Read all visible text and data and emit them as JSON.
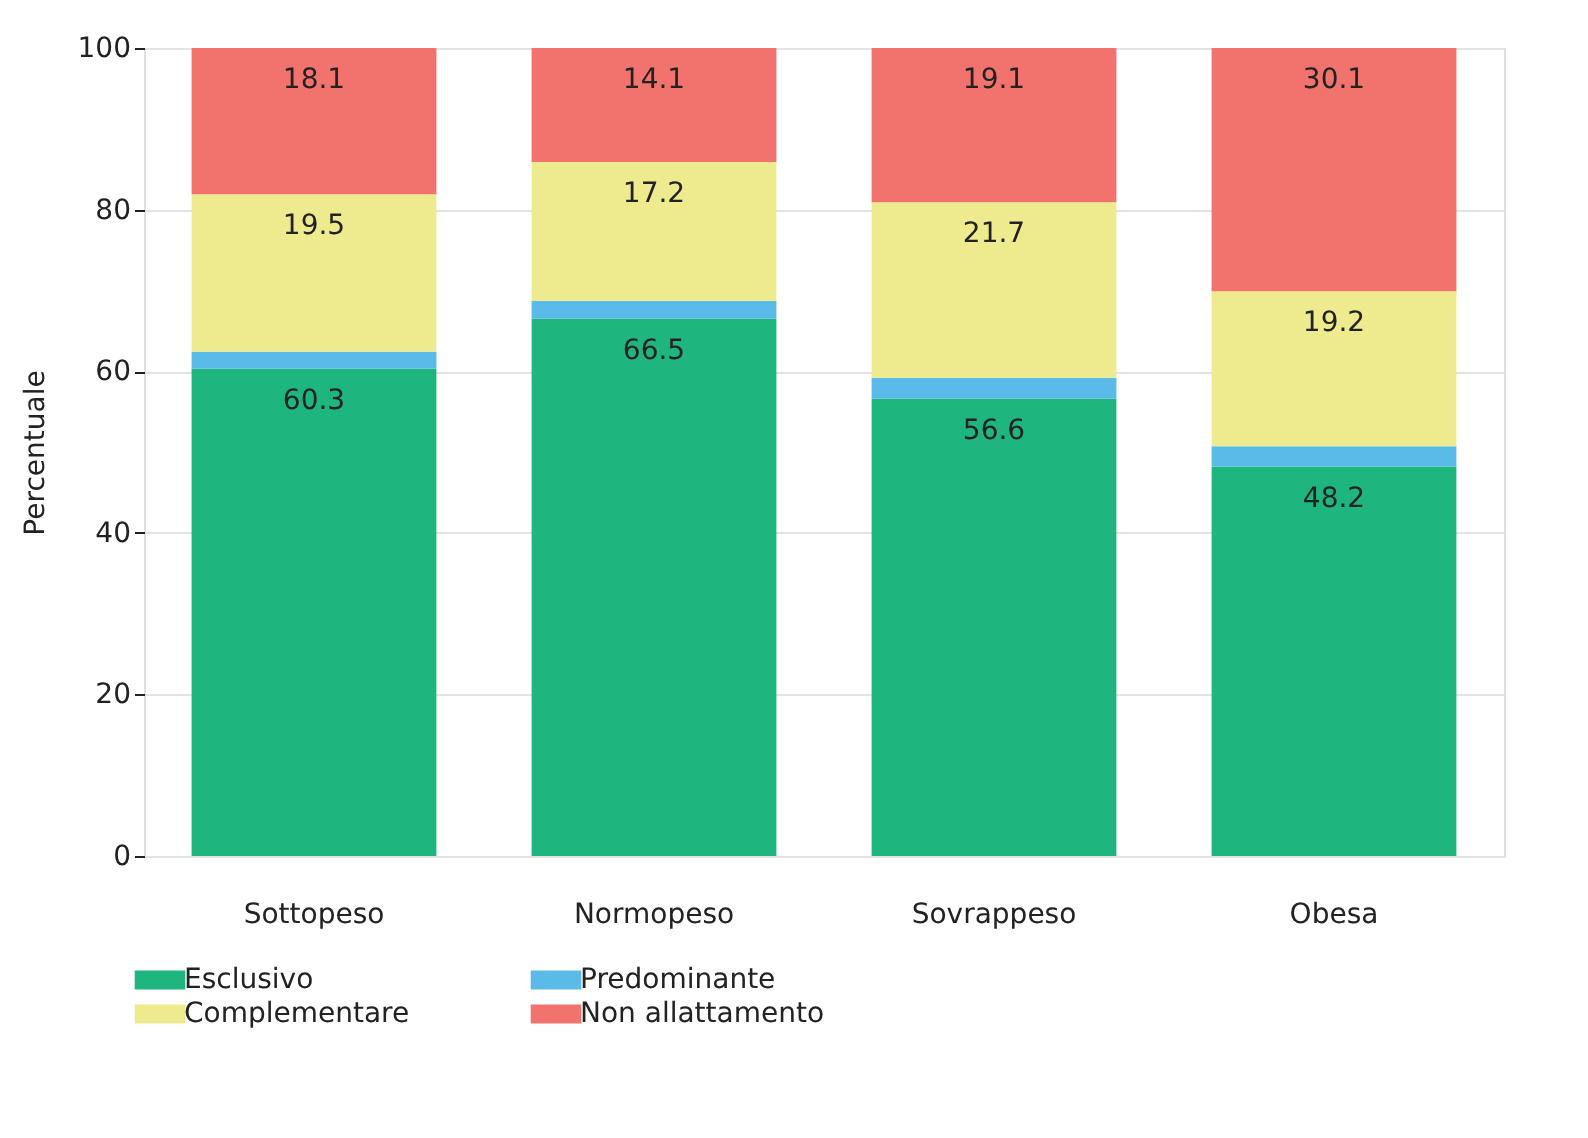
{
  "chart_data": {
    "type": "bar",
    "stacked": true,
    "ylabel": "Percentuale",
    "categories": [
      "Sottopeso",
      "Normopeso",
      "Sovrappeso",
      "Obesa"
    ],
    "series": [
      {
        "name": "Esclusivo",
        "color": "#1fb57e",
        "values": [
          60.3,
          66.5,
          56.6,
          48.2
        ],
        "value_labels": [
          "60.3",
          "66.5",
          "56.6",
          "48.2"
        ]
      },
      {
        "name": "Predominante",
        "color": "#5bbbe8",
        "values": [
          2.1,
          2.2,
          2.6,
          2.5
        ]
      },
      {
        "name": "Complementare",
        "color": "#eeeb8e",
        "values": [
          19.5,
          17.2,
          21.7,
          19.2
        ],
        "value_labels": [
          "19.5",
          "17.2",
          "21.7",
          "19.2"
        ]
      },
      {
        "name": "Non allattamento",
        "color": "#f2726d",
        "values": [
          18.1,
          14.1,
          19.1,
          30.1
        ],
        "value_labels": [
          "18.1",
          "14.1",
          "19.1",
          "30.1"
        ]
      }
    ],
    "ylim": [
      0,
      100
    ],
    "yticks": [
      0,
      20,
      40,
      60,
      80,
      100
    ],
    "grid": "y",
    "legend": "bottom"
  }
}
